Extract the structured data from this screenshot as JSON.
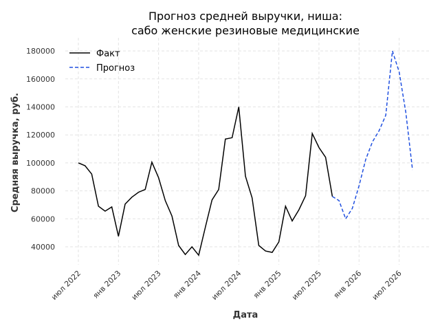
{
  "chart_data": {
    "type": "line",
    "title": [
      "Прогноз средней выручки, ниша:",
      "сабо женские резиновые медицинские"
    ],
    "xlabel": "Дата",
    "ylabel": "Средняя выручка, руб.",
    "ylim": [
      26000,
      188000
    ],
    "grid": true,
    "legend_position": "top-left",
    "x_start": "2022-07",
    "x_ticks": [
      "июл 2022",
      "янв 2023",
      "июл 2023",
      "янв 2024",
      "июл 2024",
      "янв 2025",
      "июл 2025",
      "янв 2026",
      "июл 2026"
    ],
    "y_ticks": [
      40000,
      60000,
      80000,
      100000,
      120000,
      140000,
      160000,
      180000
    ],
    "series": [
      {
        "name": "Факт",
        "color": "#000000",
        "style": "solid",
        "start_index": 0,
        "values": [
          100000,
          98000,
          92000,
          69000,
          65500,
          68500,
          47500,
          70500,
          75500,
          79000,
          81000,
          100500,
          89500,
          73000,
          62000,
          41000,
          34500,
          40000,
          34000,
          54000,
          73500,
          81000,
          117000,
          118000,
          140000,
          90500,
          75000,
          41000,
          37000,
          36000,
          43500,
          69000,
          58500,
          66500,
          76500,
          121000,
          111000,
          104000,
          76000
        ]
      },
      {
        "name": "Прогноз",
        "color": "#1f4fe0",
        "style": "dashed",
        "start_index": 38,
        "values": [
          76000,
          73000,
          60000,
          67500,
          83500,
          102500,
          115000,
          123000,
          134000,
          180000,
          165000,
          136000,
          95000
        ]
      }
    ]
  }
}
